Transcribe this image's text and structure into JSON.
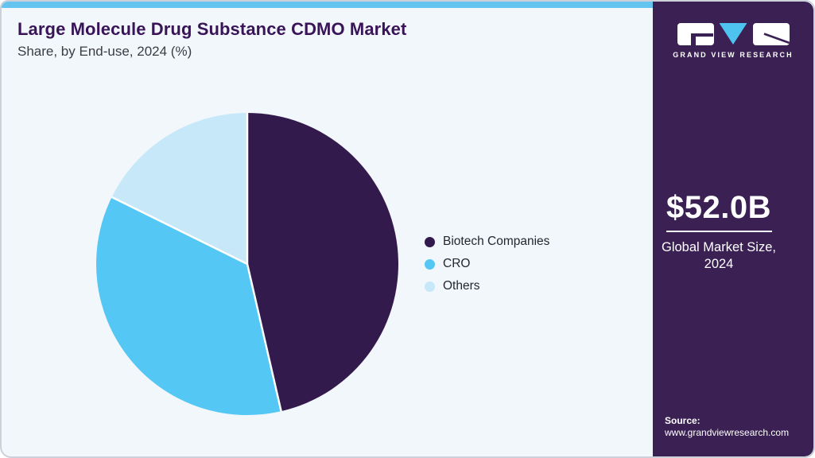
{
  "header": {
    "title": "Large Molecule Drug Substance CDMO Market",
    "subtitle": "Share, by End-use, 2024 (%)"
  },
  "chart_data": {
    "type": "pie",
    "title": "Large Molecule Drug Substance CDMO Market Share, by End-use, 2024 (%)",
    "unit": "%",
    "segments": [
      {
        "label": "Biotech Companies",
        "value": 46.4,
        "color": "#331a4d"
      },
      {
        "label": "CRO",
        "value": 35.9,
        "color": "#54c7f4"
      },
      {
        "label": "Others",
        "value": 17.7,
        "color": "#c6e8f9"
      }
    ],
    "start_angle_deg": 0,
    "direction": "clockwise",
    "legend_position": "right",
    "separator_color": "#ffffff"
  },
  "sidebar": {
    "brand": "GRAND VIEW RESEARCH",
    "logo_accent": "#4fc3f0",
    "bg_color": "#3a2053",
    "market_size_value": "$52.0B",
    "market_size_label": "Global Market Size, 2024",
    "source_label": "Source:",
    "source_url": "www.grandviewresearch.com"
  },
  "colors": {
    "top_bar": "#65c3ef",
    "card_bg": "#f1f7fb",
    "title_text": "#3a1458",
    "subtitle_text": "#3c3c43",
    "legend_text": "#26262e"
  }
}
